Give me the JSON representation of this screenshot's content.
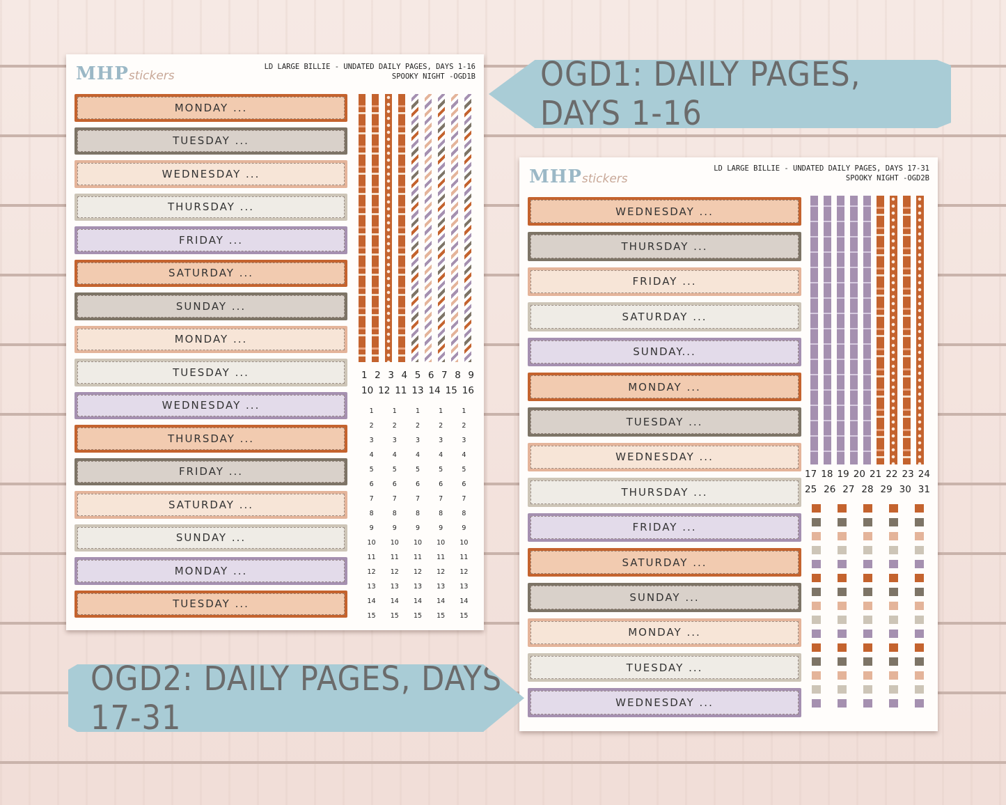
{
  "colors": {
    "orange": "#c4632e",
    "gray": "#7d7466",
    "peach": "#e4b49a",
    "stone": "#cdc5b7",
    "purple": "#a590b0",
    "arrow_blue": "#a9ccd6"
  },
  "sheet1": {
    "logo_main": "MHP",
    "logo_sub": "stickers",
    "title_line1": "LD LARGE BILLIE  - UNDATED DAILY PAGES, DAYS 1-16",
    "title_line2": "SPOOKY NIGHT -OGD1B",
    "banners": [
      {
        "label": "MONDAY ...",
        "color": "orange"
      },
      {
        "label": "TUESDAY ...",
        "color": "gray"
      },
      {
        "label": "WEDNESDAY ...",
        "color": "peach"
      },
      {
        "label": "THURSDAY ...",
        "color": "stone"
      },
      {
        "label": "FRIDAY ...",
        "color": "purple"
      },
      {
        "label": "SATURDAY ...",
        "color": "orange"
      },
      {
        "label": "SUNDAY ...",
        "color": "gray"
      },
      {
        "label": "MONDAY ...",
        "color": "peach"
      },
      {
        "label": "TUESDAY ...",
        "color": "stone"
      },
      {
        "label": "WEDNESDAY ...",
        "color": "purple"
      },
      {
        "label": "THURSDAY ...",
        "color": "orange"
      },
      {
        "label": "FRIDAY ...",
        "color": "gray"
      },
      {
        "label": "SATURDAY ...",
        "color": "peach"
      },
      {
        "label": "SUNDAY ...",
        "color": "stone"
      },
      {
        "label": "MONDAY ...",
        "color": "purple"
      },
      {
        "label": "TUESDAY ...",
        "color": "orange"
      }
    ],
    "strip_numbers_row1": [
      "1",
      "2",
      "3",
      "4",
      "5",
      "6",
      "7",
      "8",
      "9"
    ],
    "strip_numbers_row2": [
      "10",
      "12",
      "11",
      "13",
      "14",
      "15",
      "16"
    ],
    "number_grid": [
      "1",
      "1",
      "1",
      "1",
      "1",
      "2",
      "2",
      "2",
      "2",
      "2",
      "3",
      "3",
      "3",
      "3",
      "3",
      "4",
      "4",
      "4",
      "4",
      "4",
      "5",
      "5",
      "5",
      "5",
      "5",
      "6",
      "6",
      "6",
      "6",
      "6",
      "7",
      "7",
      "7",
      "7",
      "7",
      "8",
      "8",
      "8",
      "8",
      "8",
      "9",
      "9",
      "9",
      "9",
      "9",
      "10",
      "10",
      "10",
      "10",
      "10",
      "11",
      "11",
      "11",
      "11",
      "11",
      "12",
      "12",
      "12",
      "12",
      "12",
      "13",
      "13",
      "13",
      "13",
      "13",
      "14",
      "14",
      "14",
      "14",
      "14",
      "15",
      "15",
      "15",
      "15",
      "15"
    ]
  },
  "sheet2": {
    "logo_main": "MHP",
    "logo_sub": "stickers",
    "title_line1": "LD LARGE BILLIE - UNDATED DAILY PAGES, DAYS 17-31",
    "title_line2": "SPOOKY NIGHT -OGD2B",
    "banners": [
      {
        "label": "WEDNESDAY ...",
        "color": "orange"
      },
      {
        "label": "THURSDAY ...",
        "color": "gray"
      },
      {
        "label": "FRIDAY ...",
        "color": "peach"
      },
      {
        "label": "SATURDAY ...",
        "color": "stone"
      },
      {
        "label": "SUNDAY...",
        "color": "purple"
      },
      {
        "label": "MONDAY ...",
        "color": "orange"
      },
      {
        "label": "TUESDAY ...",
        "color": "gray"
      },
      {
        "label": "WEDNESDAY ...",
        "color": "peach"
      },
      {
        "label": "THURSDAY ...",
        "color": "stone"
      },
      {
        "label": "FRIDAY ...",
        "color": "purple"
      },
      {
        "label": "SATURDAY ...",
        "color": "orange"
      },
      {
        "label": "SUNDAY ...",
        "color": "gray"
      },
      {
        "label": "MONDAY ...",
        "color": "peach"
      },
      {
        "label": "TUESDAY ...",
        "color": "stone"
      },
      {
        "label": "WEDNESDAY ...",
        "color": "purple"
      }
    ],
    "strip_numbers_row1": [
      "17",
      "18",
      "19",
      "20",
      "21",
      "22",
      "23",
      "24"
    ],
    "strip_numbers_row2": [
      "25",
      "26",
      "27",
      "28",
      "29",
      "30",
      "31"
    ]
  },
  "arrows": {
    "ogd1": "OGD1: DAILY PAGES, DAYS 1-16",
    "ogd2": "OGD2: DAILY PAGES, DAYS 17-31"
  }
}
